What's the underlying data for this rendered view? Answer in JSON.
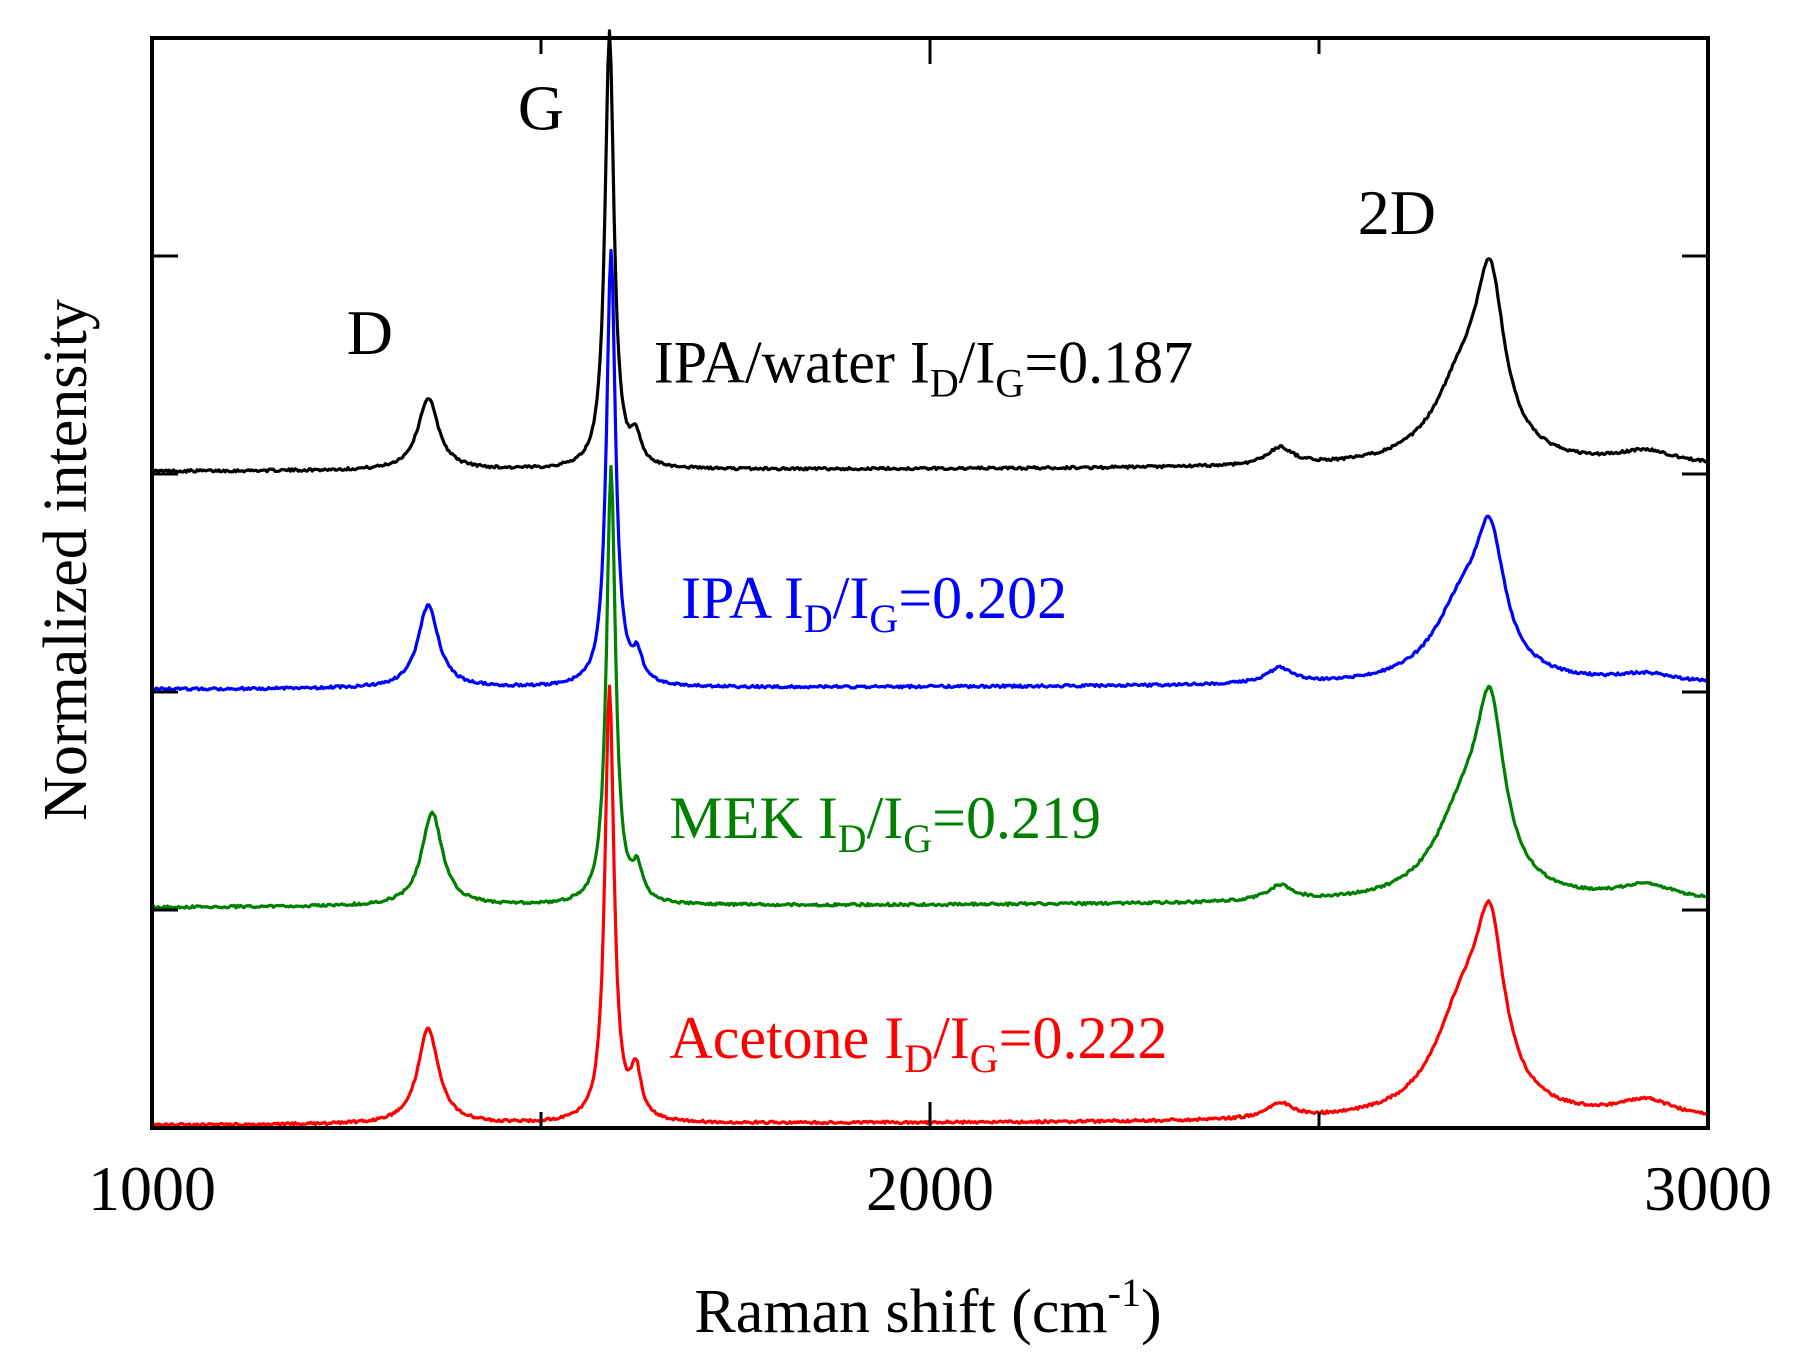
{
  "chart_data": {
    "type": "line",
    "xlabel": "Raman shift (cm",
    "xlabel_sup": "-1",
    "xlabel_close": ")",
    "ylabel": "Normalized intensity",
    "xlim": [
      1000,
      3000
    ],
    "x_ticks": [
      1000,
      2000,
      3000
    ],
    "x_tick_labels": [
      "1000",
      "2000",
      "3000"
    ],
    "x_minor_ticks": [
      1500,
      2500
    ],
    "ylim": [
      0,
      5
    ],
    "y_ticks": [
      1,
      2,
      3,
      4
    ],
    "y_axis_labels_shown": false,
    "grid": false,
    "peak_labels": [
      {
        "text": "D",
        "x": 1280,
        "y": 3.55
      },
      {
        "text": "G",
        "x": 1500,
        "y": 4.58
      },
      {
        "text": "2D",
        "x": 2600,
        "y": 4.1
      }
    ],
    "series": [
      {
        "name": "IPA/water",
        "ratio": "0.187",
        "color": "#000000",
        "baseline": 3.0,
        "peaks": [
          {
            "center": 1355,
            "height": 0.33,
            "width": 16
          },
          {
            "center": 1588,
            "height": 2.0,
            "width": 7
          },
          {
            "center": 1622,
            "height": 0.12,
            "width": 8
          },
          {
            "center": 2450,
            "height": 0.08,
            "width": 20
          },
          {
            "center": 2685,
            "height": 0.37,
            "width": 45
          },
          {
            "center": 2720,
            "height": 0.72,
            "width": 22
          },
          {
            "center": 2920,
            "height": 0.06,
            "width": 45
          }
        ]
      },
      {
        "name": "IPA",
        "ratio": "0.202",
        "color": "#0000ff",
        "baseline": 2.0,
        "peaks": [
          {
            "center": 1355,
            "height": 0.38,
            "width": 16
          },
          {
            "center": 1590,
            "height": 2.0,
            "width": 7
          },
          {
            "center": 1624,
            "height": 0.12,
            "width": 8
          },
          {
            "center": 2450,
            "height": 0.07,
            "width": 20
          },
          {
            "center": 2685,
            "height": 0.35,
            "width": 45
          },
          {
            "center": 2720,
            "height": 0.55,
            "width": 22
          },
          {
            "center": 2920,
            "height": 0.04,
            "width": 45
          }
        ]
      },
      {
        "name": "MEK",
        "ratio": "0.219",
        "color": "#008000",
        "baseline": 1.0,
        "peaks": [
          {
            "center": 1360,
            "height": 0.43,
            "width": 16
          },
          {
            "center": 1590,
            "height": 2.0,
            "width": 7
          },
          {
            "center": 1624,
            "height": 0.14,
            "width": 8
          },
          {
            "center": 2450,
            "height": 0.07,
            "width": 20
          },
          {
            "center": 2685,
            "height": 0.38,
            "width": 45
          },
          {
            "center": 2720,
            "height": 0.75,
            "width": 22
          },
          {
            "center": 2920,
            "height": 0.07,
            "width": 45
          }
        ]
      },
      {
        "name": "Acetone",
        "ratio": "0.222",
        "color": "#ff0000",
        "baseline": 0.0,
        "peaks": [
          {
            "center": 1355,
            "height": 0.44,
            "width": 16
          },
          {
            "center": 1588,
            "height": 2.0,
            "width": 7
          },
          {
            "center": 1622,
            "height": 0.22,
            "width": 8
          },
          {
            "center": 2450,
            "height": 0.07,
            "width": 20
          },
          {
            "center": 2685,
            "height": 0.48,
            "width": 45
          },
          {
            "center": 2720,
            "height": 0.7,
            "width": 22
          },
          {
            "center": 2920,
            "height": 0.08,
            "width": 45
          }
        ]
      }
    ],
    "annotations": [
      {
        "series": "IPA/water",
        "text": "IPA/water I",
        "sub_d": "D",
        "slash": "/I",
        "sub_g": "G",
        "value": "=0.187",
        "x": 1645,
        "y": 3.42
      },
      {
        "series": "IPA",
        "text": "IPA I",
        "sub_d": "D",
        "slash": "/I",
        "sub_g": "G",
        "value": "=0.202",
        "x": 1680,
        "y": 2.34
      },
      {
        "series": "MEK",
        "text": "MEK I",
        "sub_d": "D",
        "slash": "/I",
        "sub_g": "G",
        "value": "=0.219",
        "x": 1665,
        "y": 1.33
      },
      {
        "series": "Acetone",
        "text": "Acetone I",
        "sub_d": "D",
        "slash": "/I",
        "sub_g": "G",
        "value": "=0.222",
        "x": 1665,
        "y": 0.32
      }
    ]
  }
}
